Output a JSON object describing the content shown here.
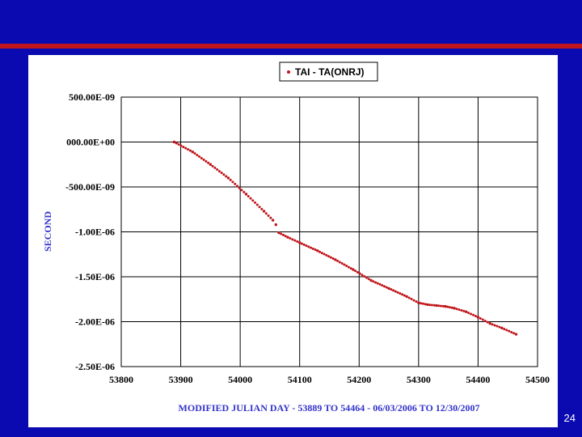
{
  "slide_number": "24",
  "chart_data": {
    "type": "scatter",
    "title": "",
    "xlabel": "MODIFIED JULIAN DAY - 53889 TO 54464 - 06/03/2006 TO 12/30/2007",
    "ylabel": "SECOND",
    "xlim": [
      53800,
      54500
    ],
    "ylim": [
      -2.5e-06,
      5e-07
    ],
    "x_ticks": [
      53800,
      53900,
      54000,
      54100,
      54200,
      54300,
      54400,
      54500
    ],
    "x_tick_labels": [
      "53800",
      "53900",
      "54000",
      "54100",
      "54200",
      "54300",
      "54400",
      "54500"
    ],
    "y_ticks": [
      5e-07,
      0,
      -5e-07,
      -1e-06,
      -1.5e-06,
      -2e-06,
      -2.5e-06
    ],
    "y_tick_labels": [
      "500.00E-09",
      "000.00E+00",
      "-500.00E-09",
      "-1.00E-06",
      "-1.50E-06",
      "-2.00E-06",
      "-2.50E-06"
    ],
    "grid": true,
    "legend_position": "top-center",
    "series": [
      {
        "name": "TAI - TA(ONRJ)",
        "color": "#c0151a",
        "x": [
          53889,
          53920,
          53950,
          53980,
          54010,
          54040,
          54055,
          54060,
          54065,
          54080,
          54100,
          54130,
          54160,
          54190,
          54220,
          54250,
          54280,
          54300,
          54315,
          54330,
          54345,
          54360,
          54380,
          54400,
          54420,
          54440,
          54464
        ],
        "y": [
          0.0,
          -1.1e-07,
          -2.5e-07,
          -4e-07,
          -5.8e-07,
          -7.7e-07,
          -8.7e-07,
          -9.2e-07,
          -1.01e-06,
          -1.06e-06,
          -1.12e-06,
          -1.21e-06,
          -1.31e-06,
          -1.42e-06,
          -1.54e-06,
          -1.63e-06,
          -1.72e-06,
          -1.79e-06,
          -1.81e-06,
          -1.82e-06,
          -1.83e-06,
          -1.85e-06,
          -1.89e-06,
          -1.95e-06,
          -2.02e-06,
          -2.07e-06,
          -2.14e-06
        ]
      }
    ]
  }
}
